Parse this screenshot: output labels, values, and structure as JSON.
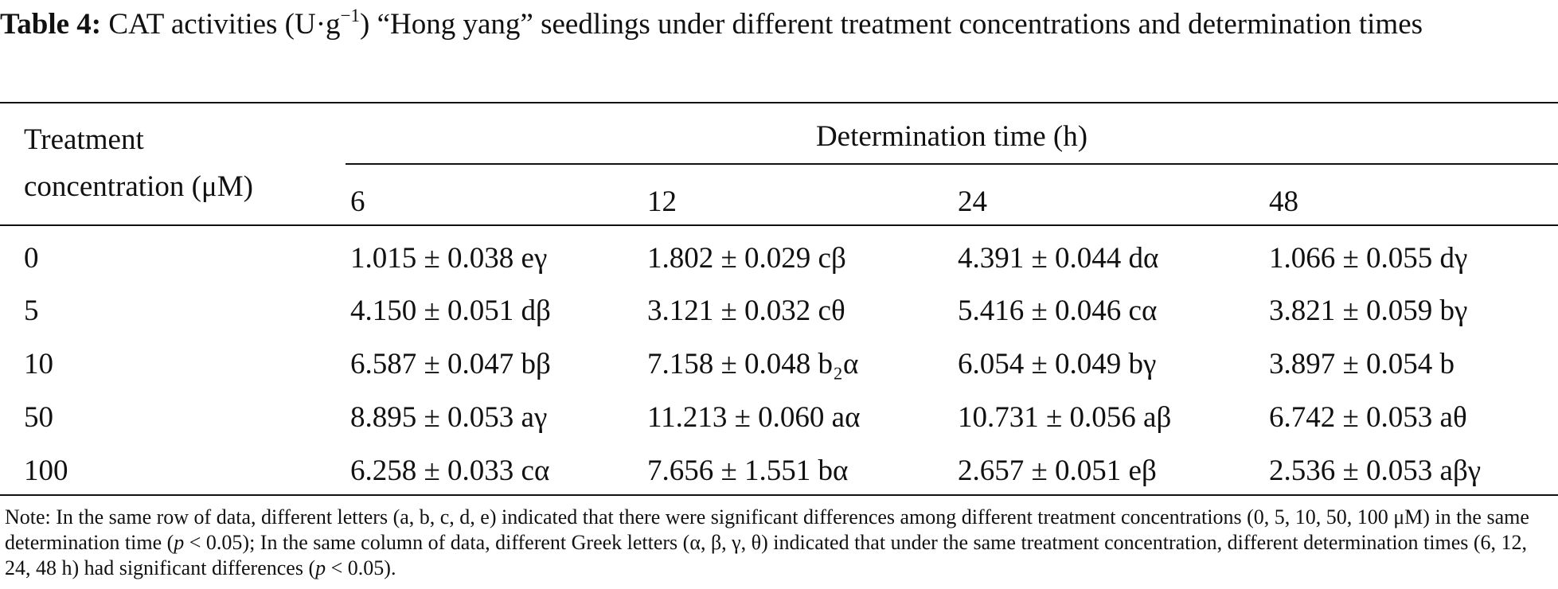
{
  "caption": {
    "label": "Table 4:",
    "text_before_sup": "CAT activities (U·g",
    "sup": "−1",
    "text_after_sup": ") “Hong yang” seedlings under different treatment concentrations and determination times"
  },
  "table": {
    "stub_header": "Treatment concentration (μM)",
    "spanning_header": "Determination time (h)",
    "columns": [
      "6",
      "12",
      "24",
      "48"
    ],
    "rows": [
      {
        "concentration": "0",
        "values": [
          "1.015 ± 0.038 eγ",
          "1.802 ± 0.029 cβ",
          "4.391 ± 0.044 dα",
          "1.066 ± 0.055 dγ"
        ]
      },
      {
        "concentration": "5",
        "values": [
          "4.150 ± 0.051 dβ",
          "3.121 ± 0.032 cθ",
          "5.416 ± 0.046 cα",
          "3.821 ± 0.059 bγ"
        ]
      },
      {
        "concentration": "10",
        "values": [
          "6.587 ± 0.047 bβ",
          "7.158 ± 0.048 b₂α",
          "6.054 ± 0.049 bγ",
          "3.897 ± 0.054 b"
        ]
      },
      {
        "concentration": "50",
        "values": [
          "8.895 ± 0.053 aγ",
          "11.213 ± 0.060 aα",
          "10.731 ± 0.056 aβ",
          "6.742 ± 0.053 aθ"
        ]
      },
      {
        "concentration": "100",
        "values": [
          "6.258 ± 0.033 cα",
          "7.656 ± 1.551 bα",
          "2.657 ± 0.051 eβ",
          "2.536 ± 0.053 aβγ"
        ]
      }
    ]
  },
  "note": {
    "part1": "Note: In the same row of data, different letters (a, b, c, d, e) indicated that there were significant differences among different treatment concentrations (0, 5, 10, 50, 100 μM) in the same determination time (",
    "p1": "p",
    "part2": " < 0.05); In the same column of data, different Greek letters (α, β, γ, θ) indicated that under the same treatment concentration, different determination times (6, 12, 24, 48 h) had significant differences (",
    "p2": "p",
    "part3": " < 0.05)."
  }
}
